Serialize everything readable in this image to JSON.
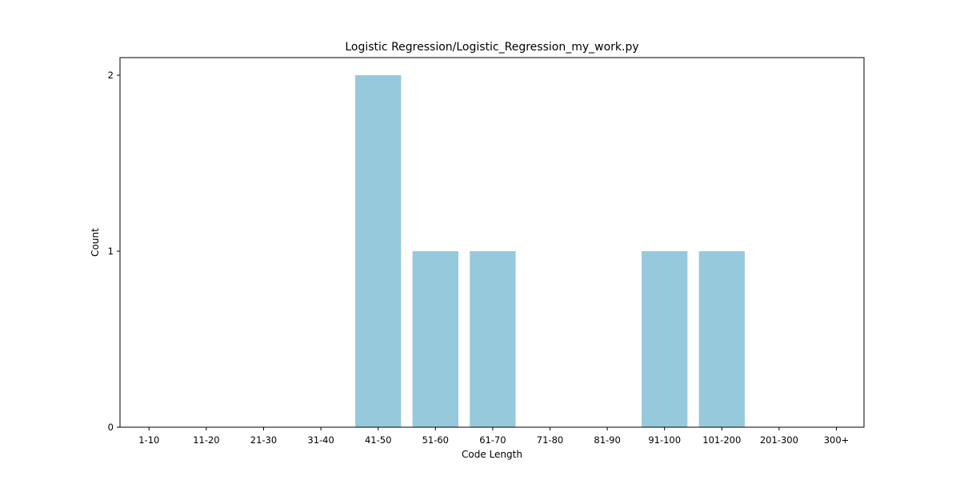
{
  "chart_data": {
    "type": "bar",
    "title": "Logistic Regression/Logistic_Regression_my_work.py",
    "xlabel": "Code Length",
    "ylabel": "Count",
    "categories": [
      "1-10",
      "11-20",
      "21-30",
      "31-40",
      "41-50",
      "51-60",
      "61-70",
      "71-80",
      "81-90",
      "91-100",
      "101-200",
      "201-300",
      "300+"
    ],
    "values": [
      0,
      0,
      0,
      0,
      2,
      1,
      1,
      0,
      0,
      1,
      1,
      0,
      0
    ],
    "ylim": [
      0,
      2.1
    ],
    "yticks": [
      0,
      1,
      2
    ],
    "grid": false,
    "bar_color": "#96c9dc"
  }
}
